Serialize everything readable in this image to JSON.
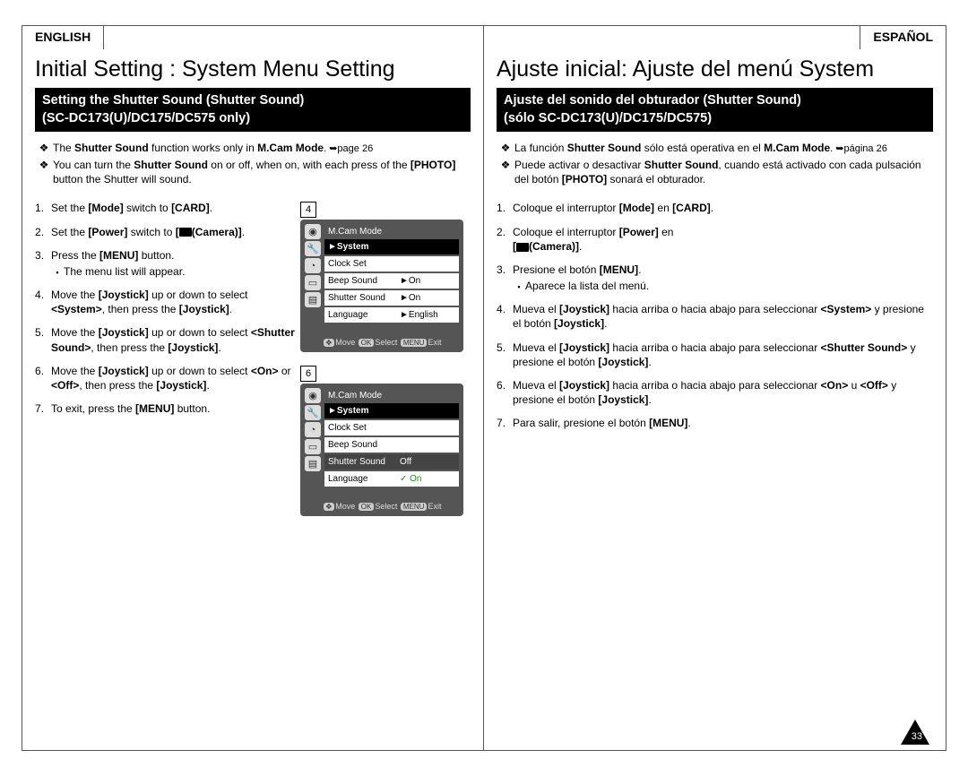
{
  "page_number": "33",
  "lang_en": "ENGLISH",
  "lang_es": "ESPAÑOL",
  "en": {
    "title": "Initial Setting : System Menu Setting",
    "bar1": "Setting the Shutter Sound (Shutter Sound)",
    "bar2": "(SC-DC173(U)/DC175/DC575 only)",
    "note1_a": "The ",
    "note1_b": "Shutter Sound",
    "note1_c": " function works only in ",
    "note1_d": "M.Cam Mode",
    "note1_e": ". ➥page 26",
    "note2_a": "You can turn the ",
    "note2_b": "Shutter Sound",
    "note2_c": " on or off, when on, with each press of the ",
    "note2_d": "[PHOTO]",
    "note2_e": " button the Shutter will sound.",
    "s1_a": "Set the ",
    "s1_b": "[Mode]",
    "s1_c": " switch to ",
    "s1_d": "[CARD]",
    "s1_e": ".",
    "s2_a": "Set the ",
    "s2_b": "[Power]",
    "s2_c": " switch to ",
    "s2_d": "[",
    "s2_cam": "(Camera)]",
    "s2_e": ".",
    "s3_a": "Press the ",
    "s3_b": "[MENU]",
    "s3_c": " button.",
    "s3_sub": "The menu list will appear.",
    "s4_a": "Move the ",
    "s4_b": "[Joystick]",
    "s4_c": " up or down to select ",
    "s4_d": "<System>",
    "s4_e": ", then press the ",
    "s4_f": "[Joystick]",
    "s4_g": ".",
    "s5_a": "Move the ",
    "s5_b": "[Joystick]",
    "s5_c": " up or down to select ",
    "s5_d": "<Shutter Sound>",
    "s5_e": ", then press the ",
    "s5_f": "[Joystick]",
    "s5_g": ".",
    "s6_a": "Move the ",
    "s6_b": "[Joystick]",
    "s6_c": " up or down to select ",
    "s6_d": "<On>",
    "s6_e": " or ",
    "s6_f": "<Off>",
    "s6_g": ", then press the ",
    "s6_h": "[Joystick]",
    "s6_i": ".",
    "s7_a": "To exit, press the ",
    "s7_b": "[MENU]",
    "s7_c": " button."
  },
  "es": {
    "title": "Ajuste inicial: Ajuste del menú System",
    "bar1": "Ajuste del sonido del obturador (Shutter Sound)",
    "bar2": "(sólo SC-DC173(U)/DC175/DC575)",
    "note1_a": "La función ",
    "note1_b": "Shutter Sound",
    "note1_c": " sólo está operativa en el ",
    "note1_d": "M.Cam Mode",
    "note1_e": ". ➥página 26",
    "note2_a": "Puede activar o desactivar ",
    "note2_b": "Shutter Sound",
    "note2_c": ", cuando está activado con cada pulsación del botón ",
    "note2_d": "[PHOTO]",
    "note2_e": " sonará el obturador.",
    "s1_a": "Coloque el interruptor ",
    "s1_b": "[Mode]",
    "s1_c": " en ",
    "s1_d": "[CARD]",
    "s1_e": ".",
    "s2_a": "Coloque el interruptor ",
    "s2_b": "[Power]",
    "s2_c": " en ",
    "s2_d": "[",
    "s2_cam": "(Camera)]",
    "s2_e": ".",
    "s3_a": "Presione el botón ",
    "s3_b": "[MENU]",
    "s3_c": ".",
    "s3_sub": "Aparece la lista del menú.",
    "s4_a": "Mueva el ",
    "s4_b": "[Joystick]",
    "s4_c": " hacia arriba o hacia abajo para seleccionar ",
    "s4_d": "<System>",
    "s4_e": " y presione el botón ",
    "s4_f": "[Joystick]",
    "s4_g": ".",
    "s5_a": "Mueva el ",
    "s5_b": "[Joystick]",
    "s5_c": " hacia arriba o hacia abajo para seleccionar ",
    "s5_d": "<Shutter Sound>",
    "s5_e": " y presione el botón ",
    "s5_f": "[Joystick]",
    "s5_g": ".",
    "s6_a": "Mueva el ",
    "s6_b": "[Joystick]",
    "s6_c": " hacia arriba o hacia abajo para seleccionar ",
    "s6_d": "<On>",
    "s6_e": " u ",
    "s6_f": "<Off>",
    "s6_g": " y presione el botón ",
    "s6_h": "[Joystick]",
    "s6_i": ".",
    "s7_a": "Para salir, presione el botón ",
    "s7_b": "[MENU]",
    "s7_c": "."
  },
  "diag": {
    "num4": "4",
    "num6": "6",
    "mode": "M.Cam Mode",
    "system": "►System",
    "clock": "Clock Set",
    "beep": "Beep Sound",
    "shutter": "Shutter Sound",
    "language": "Language",
    "on": "►On",
    "on2": "►On",
    "eng": "►English",
    "off": "Off",
    "chk_on": "✓ On",
    "nav_move": "Move",
    "nav_select": "Select",
    "nav_exit": "Exit",
    "nav_ok": "OK",
    "nav_menu": "MENU"
  }
}
